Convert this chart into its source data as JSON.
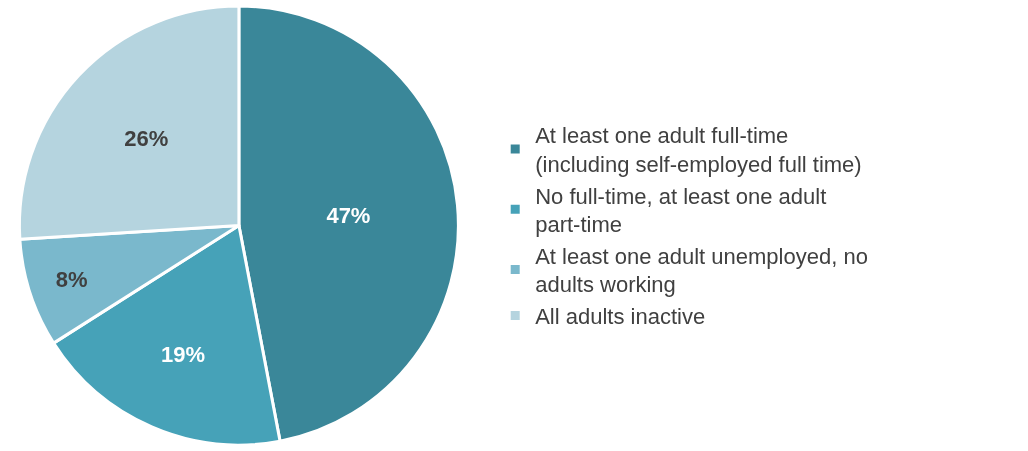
{
  "chart_data": {
    "type": "pie",
    "categories": [
      "At least one adult full-time (including self-employed full time)",
      "No full-time, at least one adult part-time",
      "At least one adult unemployed, no adults working",
      "All adults inactive"
    ],
    "values": [
      47,
      19,
      8,
      26
    ],
    "colors": [
      "#3a8799",
      "#46a2b8",
      "#7ab8cc",
      "#b5d4df"
    ],
    "value_labels": [
      "47%",
      "19%",
      "8%",
      "26%"
    ],
    "legend": "right"
  }
}
